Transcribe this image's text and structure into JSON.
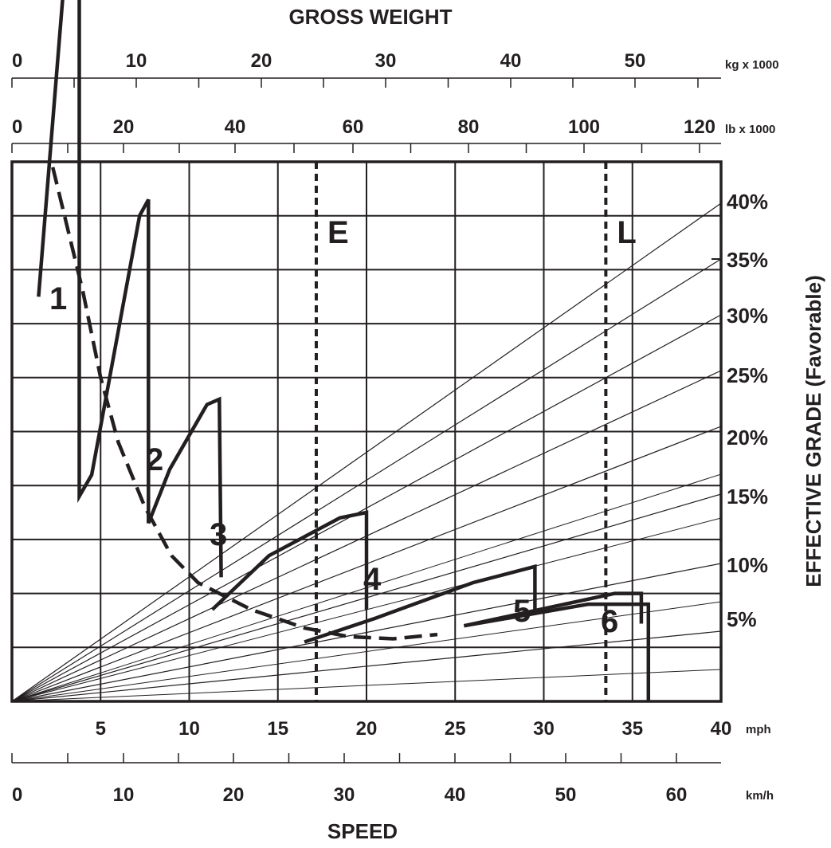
{
  "chart_data": {
    "type": "line",
    "top_title": "GROSS WEIGHT",
    "bottom_title": "SPEED",
    "right_title": "EFFECTIVE GRADE (Favorable)",
    "kg_axis": {
      "unit": "kg x 1000",
      "labels": [
        "0",
        "10",
        "20",
        "30",
        "40",
        "50"
      ],
      "range": [
        0,
        57
      ]
    },
    "lb_axis": {
      "unit": "lb x 1000",
      "labels": [
        "0",
        "20",
        "40",
        "60",
        "80",
        "100",
        "120"
      ],
      "range": [
        0,
        120
      ]
    },
    "mph_axis": {
      "unit": "mph",
      "labels": [
        "5",
        "10",
        "15",
        "20",
        "25",
        "30",
        "35",
        "40"
      ],
      "range": [
        0,
        40
      ]
    },
    "kmh_axis": {
      "unit": "km/h",
      "labels": [
        "0",
        "10",
        "20",
        "30",
        "40",
        "50",
        "60"
      ],
      "range": [
        0,
        64.4
      ]
    },
    "grade_labels": [
      "40%",
      "35%",
      "30%",
      "25%",
      "20%",
      "15%",
      "10%",
      "5%"
    ],
    "grid": true,
    "reference_lines": [
      {
        "label": "E",
        "gross_weight_lb_x1000": 51.5
      },
      {
        "label": "L",
        "gross_weight_lb_x1000": 100.5
      }
    ],
    "gears": [
      {
        "label": "1",
        "points": [
          [
            1.5,
            0.375
          ],
          [
            3.2,
            0.72
          ],
          [
            3.8,
            0.765
          ],
          [
            3.8,
            0.19
          ],
          [
            4.5,
            0.21
          ],
          [
            7.2,
            0.45
          ],
          [
            7.7,
            0.465
          ],
          [
            7.7,
            0.165
          ]
        ]
      },
      {
        "label": "2",
        "points": [
          [
            7.7,
            0.165
          ],
          [
            8.9,
            0.215
          ],
          [
            11,
            0.275
          ],
          [
            11.7,
            0.28
          ],
          [
            11.8,
            0.115
          ]
        ]
      },
      {
        "label": "3",
        "points": [
          [
            11.3,
            0.085
          ],
          [
            14.5,
            0.135
          ],
          [
            18.5,
            0.17
          ],
          [
            20,
            0.175
          ],
          [
            20,
            0.085
          ]
        ]
      },
      {
        "label": "4",
        "points": [
          [
            16.5,
            0.055
          ],
          [
            20.5,
            0.077
          ],
          [
            26,
            0.11
          ],
          [
            29.5,
            0.125
          ],
          [
            29.5,
            0.085
          ]
        ]
      },
      {
        "label": "5",
        "points": [
          [
            25.5,
            0.07
          ],
          [
            34,
            0.1
          ],
          [
            35.5,
            0.1
          ],
          [
            35.5,
            0.073
          ],
          [
            35.5,
            0.072
          ],
          [
            35.5,
            0.072
          ]
        ]
      },
      {
        "label": "6",
        "points": [
          [
            25.5,
            0.07
          ],
          [
            32.5,
            0.09
          ],
          [
            35.9,
            0.09
          ],
          [
            35.9,
            0.0
          ]
        ]
      }
    ],
    "rimpull_envelope_dashed": [
      [
        2.3,
        0.495
      ],
      [
        4,
        0.38
      ],
      [
        5,
        0.3
      ],
      [
        6,
        0.24
      ],
      [
        7.5,
        0.18
      ],
      [
        9,
        0.135
      ],
      [
        10.5,
        0.11
      ],
      [
        13.5,
        0.085
      ],
      [
        16.5,
        0.068
      ],
      [
        19,
        0.06
      ],
      [
        21.5,
        0.058
      ],
      [
        24,
        0.062
      ]
    ]
  }
}
